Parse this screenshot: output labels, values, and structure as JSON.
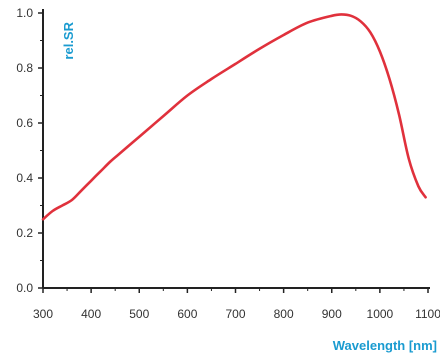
{
  "colors": {
    "curve": "#e0313c",
    "axis_title": "#1a9bd0",
    "axis": "#222222",
    "tick_text": "#333333"
  },
  "chart_data": {
    "type": "line",
    "title": "",
    "xlabel": "Wavelength [nm]",
    "ylabel": "rel.SR",
    "xlim": [
      300,
      1100
    ],
    "ylim": [
      0,
      1.0
    ],
    "x_ticks": [
      "300",
      "400",
      "500",
      "600",
      "700",
      "800",
      "900",
      "1000",
      "1100"
    ],
    "y_ticks": [
      "0.0",
      "0.2",
      "0.4",
      "0.6",
      "0.8",
      "1.0"
    ],
    "grid": false,
    "legend": "none",
    "series": [
      {
        "x": [
          300,
          320,
          340,
          360,
          380,
          400,
          420,
          440,
          460,
          480,
          500,
          550,
          600,
          650,
          700,
          750,
          800,
          850,
          900,
          920,
          940,
          960,
          980,
          1000,
          1020,
          1040,
          1060,
          1080,
          1095
        ],
        "y": [
          0.25,
          0.28,
          0.3,
          0.32,
          0.355,
          0.39,
          0.425,
          0.46,
          0.49,
          0.52,
          0.55,
          0.625,
          0.7,
          0.76,
          0.815,
          0.87,
          0.92,
          0.965,
          0.99,
          0.995,
          0.99,
          0.97,
          0.93,
          0.86,
          0.76,
          0.63,
          0.47,
          0.37,
          0.33
        ]
      }
    ]
  }
}
